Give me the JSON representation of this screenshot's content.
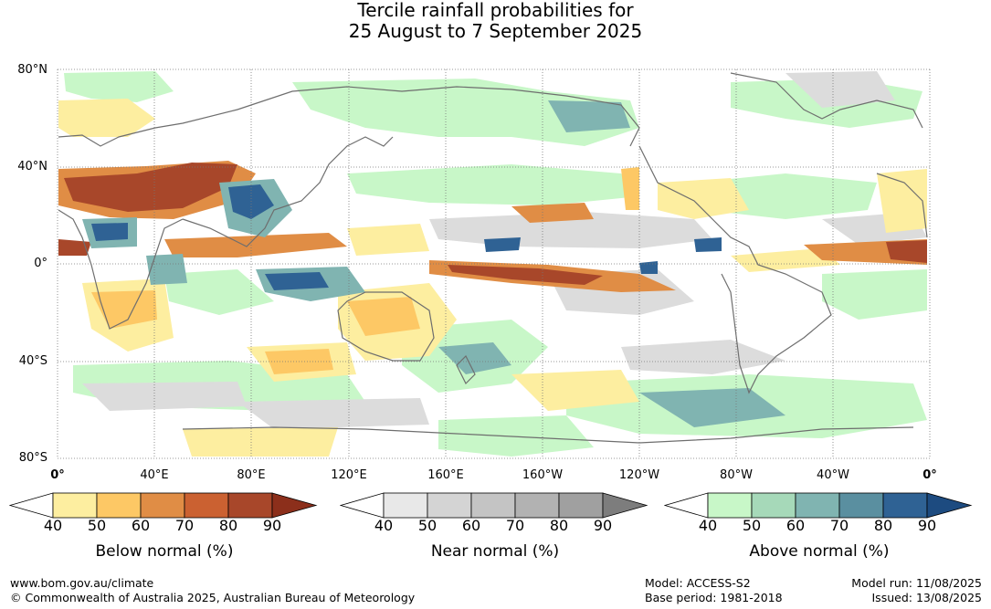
{
  "title": {
    "line1": "Tercile rainfall probabilities for",
    "line2": "25 August to 7 September 2025"
  },
  "map": {
    "lat_labels": [
      "80°N",
      "40°N",
      "0°",
      "40°S",
      "80°S"
    ],
    "lon_labels": [
      "0°",
      "40°E",
      "80°E",
      "120°E",
      "160°E",
      "160°W",
      "120°W",
      "80°W",
      "40°W",
      "0°"
    ],
    "graticule": "dotted"
  },
  "colorbars": [
    {
      "name": "Below normal (%)",
      "ticks": [
        "40",
        "50",
        "60",
        "70",
        "80",
        "90"
      ],
      "colors": [
        "#ffffff",
        "#fdeea0",
        "#fdc865",
        "#e08d45",
        "#cb6131",
        "#a8472a",
        "#8c2f1b"
      ]
    },
    {
      "name": "Near normal (%)",
      "ticks": [
        "40",
        "50",
        "60",
        "70",
        "80",
        "90"
      ],
      "colors": [
        "#ffffff",
        "#e8e8e8",
        "#d4d4d4",
        "#c4c4c4",
        "#b2b2b2",
        "#a0a0a0",
        "#7d7d7d"
      ]
    },
    {
      "name": "Above normal (%)",
      "ticks": [
        "40",
        "50",
        "60",
        "70",
        "80",
        "90"
      ],
      "colors": [
        "#ffffff",
        "#c8f7c8",
        "#a6d9b9",
        "#80b4b1",
        "#5a8fa0",
        "#2f6294",
        "#1d4b80"
      ]
    }
  ],
  "footer": {
    "url": "www.bom.gov.au/climate",
    "copyright": "© Commonwealth of Australia 2025, Australian Bureau of Meteorology",
    "model": "Model: ACCESS-S2",
    "base_period": "Base period: 1981-2018",
    "model_run": "Model run: 11/08/2025",
    "issued": "Issued: 13/08/2025"
  }
}
